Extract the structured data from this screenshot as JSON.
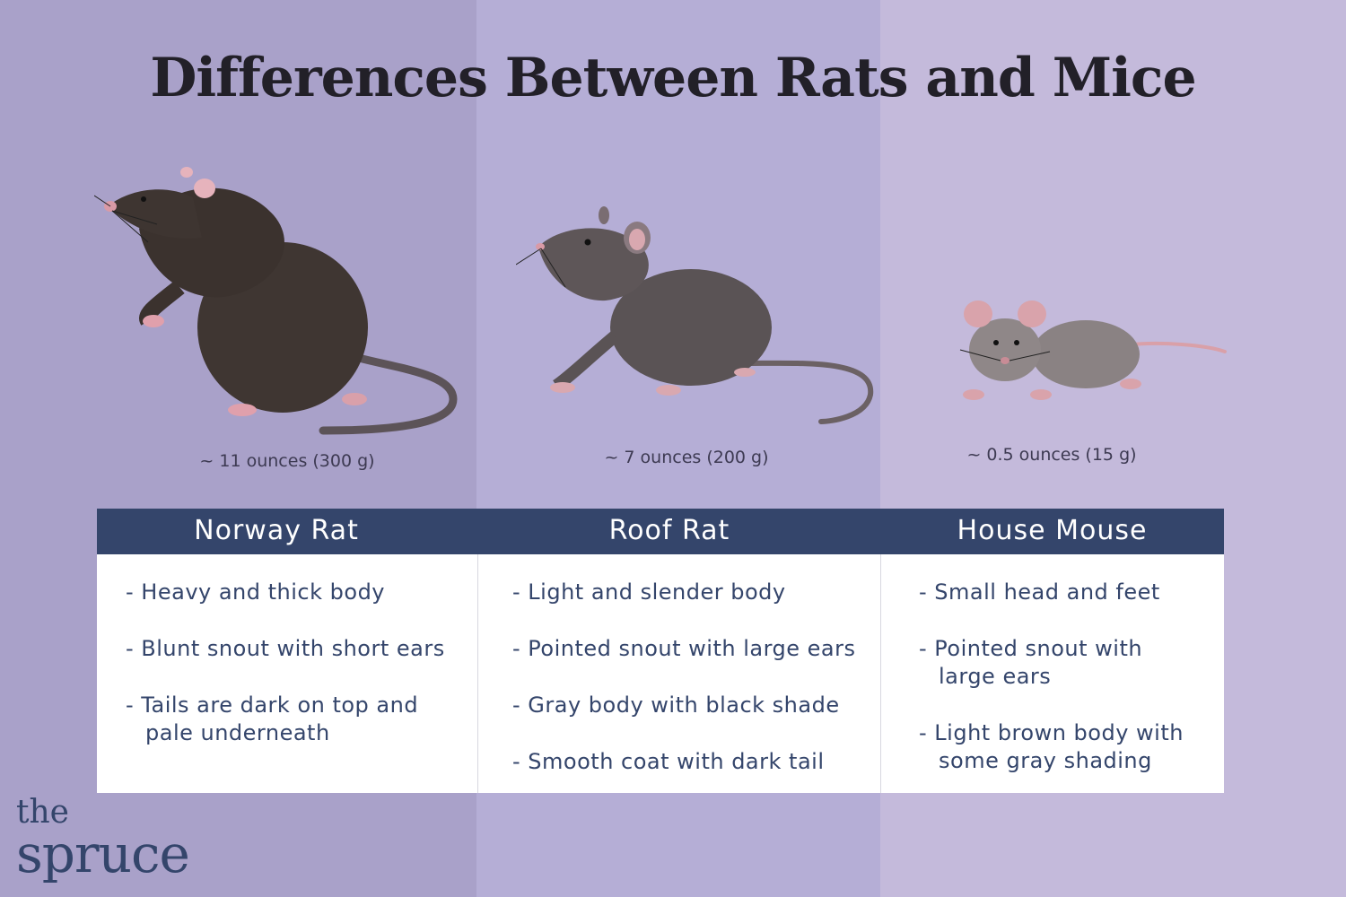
{
  "title": "Differences Between Rats and Mice",
  "columns": [
    {
      "name": "Norway Rat",
      "weight": "~ 11 ounces (300 g)",
      "traits": [
        "Heavy and thick body",
        "Blunt snout with short ears",
        "Tails are dark on top and pale underneath"
      ]
    },
    {
      "name": "Roof Rat",
      "weight": "~ 7 ounces (200 g)",
      "traits": [
        "Light and slender body",
        "Pointed snout with large ears",
        "Gray body with black shade",
        "Smooth coat with dark tail"
      ]
    },
    {
      "name": "House Mouse",
      "weight": "~ 0.5 ounces (15 g)",
      "traits": [
        "Small head and feet",
        "Pointed snout with large ears",
        "Light brown body with some gray shading"
      ]
    }
  ],
  "logo": {
    "line1": "the",
    "line2": "spruce"
  },
  "colors": {
    "header": "#34456b",
    "band_left": "#a9a1c9",
    "band_middle": "#b5aed6",
    "band_right": "#c4badb"
  }
}
